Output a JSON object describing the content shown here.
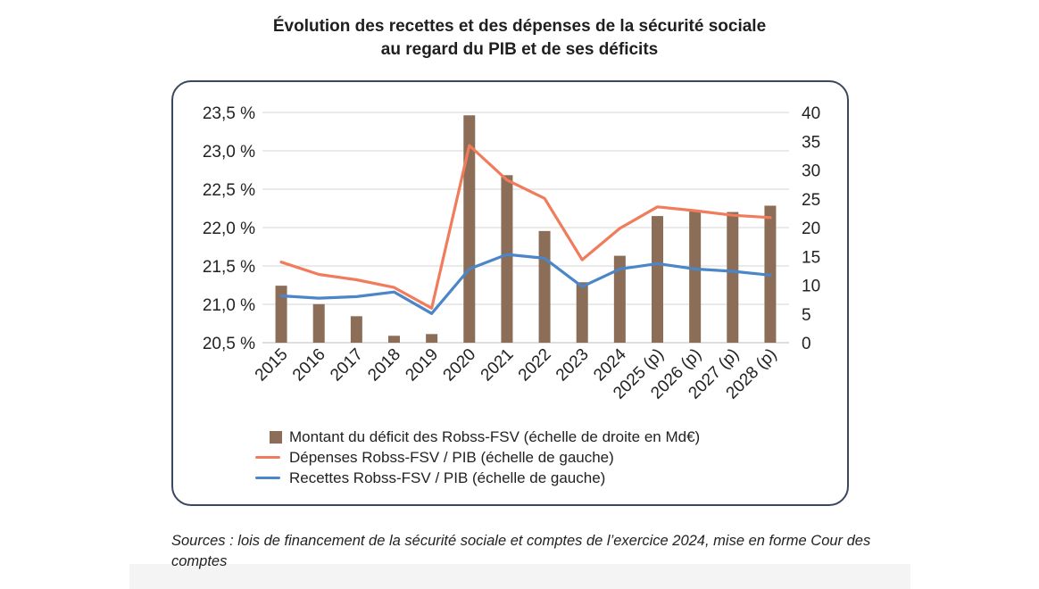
{
  "title_line1": "Évolution des recettes et des dépenses de la sécurité sociale",
  "title_line2": "au regard du PIB et de ses déficits",
  "source": "Sources : lois de financement de la sécurité sociale et comptes de l’exercice 2024, mise en forme Cour des comptes",
  "colors": {
    "bar": "#8c6d57",
    "depenses": "#f07c5c",
    "recettes": "#4a86c8",
    "frame": "#3b4660"
  },
  "chart_data": {
    "type": "bar+line",
    "categories": [
      "2015",
      "2016",
      "2017",
      "2018",
      "2019",
      "2020",
      "2021",
      "2022",
      "2023",
      "2024",
      "2025 (p)",
      "2026 (p)",
      "2027 (p)",
      "2028 (p)"
    ],
    "left_axis": {
      "ticks": [
        "20,5 %",
        "21,0 %",
        "21,5 %",
        "22,0 %",
        "22,5 %",
        "23,0 %",
        "23,5 %"
      ],
      "ylim": [
        20.5,
        23.5
      ]
    },
    "right_axis": {
      "ticks": [
        "0",
        "5",
        "10",
        "15",
        "20",
        "25",
        "30",
        "35",
        "40"
      ],
      "ylim": [
        0,
        40
      ]
    },
    "series": [
      {
        "name": "Montant du déficit des Robss-FSV (échelle de droite en Md€)",
        "type": "bar",
        "axis": "right",
        "values": [
          9.9,
          6.7,
          4.6,
          1.2,
          1.5,
          39.5,
          29.1,
          19.4,
          10.5,
          15.1,
          22.0,
          23.0,
          22.7,
          23.8
        ]
      },
      {
        "name": "Dépenses Robss-FSV / PIB (échelle de gauche)",
        "type": "line",
        "axis": "left",
        "values": [
          21.55,
          21.39,
          21.32,
          21.22,
          20.95,
          23.07,
          22.62,
          22.38,
          21.58,
          21.99,
          22.27,
          22.22,
          22.16,
          22.13
        ]
      },
      {
        "name": "Recettes Robss-FSV / PIB (échelle de gauche)",
        "type": "line",
        "axis": "left",
        "values": [
          21.11,
          21.08,
          21.1,
          21.16,
          20.88,
          21.46,
          21.65,
          21.6,
          21.23,
          21.46,
          21.53,
          21.46,
          21.43,
          21.38
        ]
      }
    ]
  }
}
